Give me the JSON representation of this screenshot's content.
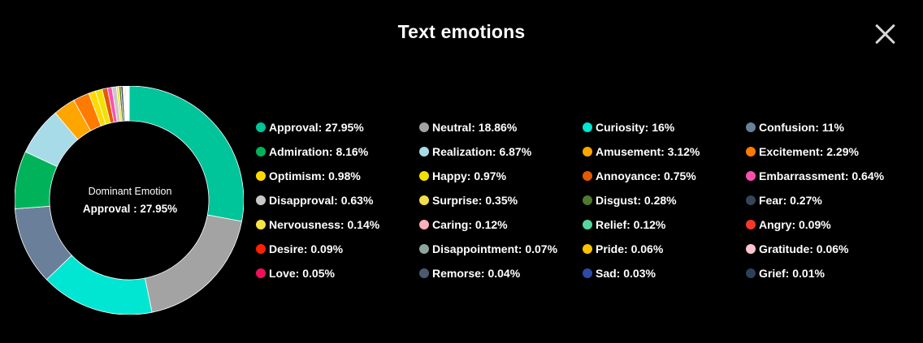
{
  "header": {
    "title": "Text emotions"
  },
  "center": {
    "label": "Dominant Emotion",
    "value": "Approval : 27.95%"
  },
  "chart_data": {
    "type": "pie",
    "series": [
      {
        "name": "Approval",
        "label": "Approval: 27.95%",
        "value": 27.95,
        "color": "#00c49a"
      },
      {
        "name": "Neutral",
        "label": "Neutral: 18.86%",
        "value": 18.86,
        "color": "#a3a3a3"
      },
      {
        "name": "Curiosity",
        "label": "Curiosity: 16%",
        "value": 16,
        "color": "#00e6d2"
      },
      {
        "name": "Confusion",
        "label": "Confusion: 11%",
        "value": 11,
        "color": "#6a7f99"
      },
      {
        "name": "Admiration",
        "label": "Admiration: 8.16%",
        "value": 8.16,
        "color": "#00b35a"
      },
      {
        "name": "Realization",
        "label": "Realization: 6.87%",
        "value": 6.87,
        "color": "#a8dbe8"
      },
      {
        "name": "Amusement",
        "label": "Amusement: 3.12%",
        "value": 3.12,
        "color": "#ffa500"
      },
      {
        "name": "Excitement",
        "label": "Excitement: 2.29%",
        "value": 2.29,
        "color": "#ff7a00"
      },
      {
        "name": "Optimism",
        "label": "Optimism: 0.98%",
        "value": 0.98,
        "color": "#ffd900"
      },
      {
        "name": "Happy",
        "label": "Happy: 0.97%",
        "value": 0.97,
        "color": "#f2e200"
      },
      {
        "name": "Annoyance",
        "label": "Annoyance: 0.75%",
        "value": 0.75,
        "color": "#e55a00"
      },
      {
        "name": "Embarrassment",
        "label": "Embarrassment: 0.64%",
        "value": 0.64,
        "color": "#ff4fb0"
      },
      {
        "name": "Disapproval",
        "label": "Disapproval: 0.63%",
        "value": 0.63,
        "color": "#c8c8c8"
      },
      {
        "name": "Surprise",
        "label": "Surprise: 0.35%",
        "value": 0.35,
        "color": "#f4dd4c"
      },
      {
        "name": "Disgust",
        "label": "Disgust: 0.28%",
        "value": 0.28,
        "color": "#4e7a2e"
      },
      {
        "name": "Fear",
        "label": "Fear: 0.27%",
        "value": 0.27,
        "color": "#33455a"
      },
      {
        "name": "Nervousness",
        "label": "Nervousness: 0.14%",
        "value": 0.14,
        "color": "#f6e445"
      },
      {
        "name": "Caring",
        "label": "Caring: 0.12%",
        "value": 0.12,
        "color": "#ffb0b8"
      },
      {
        "name": "Relief",
        "label": "Relief: 0.12%",
        "value": 0.12,
        "color": "#55d69e"
      },
      {
        "name": "Angry",
        "label": "Angry: 0.09%",
        "value": 0.09,
        "color": "#f23a2a"
      },
      {
        "name": "Desire",
        "label": "Desire: 0.09%",
        "value": 0.09,
        "color": "#ff2000"
      },
      {
        "name": "Disappointment",
        "label": "Disappointment: 0.07%",
        "value": 0.07,
        "color": "#8fa49c"
      },
      {
        "name": "Pride",
        "label": "Pride: 0.06%",
        "value": 0.06,
        "color": "#ffc200"
      },
      {
        "name": "Gratitude",
        "label": "Gratitude: 0.06%",
        "value": 0.06,
        "color": "#ffc4d0"
      },
      {
        "name": "Love",
        "label": "Love: 0.05%",
        "value": 0.05,
        "color": "#f0105a"
      },
      {
        "name": "Remorse",
        "label": "Remorse: 0.04%",
        "value": 0.04,
        "color": "#4a5a72"
      },
      {
        "name": "Sad",
        "label": "Sad: 0.03%",
        "value": 0.03,
        "color": "#2c4aa6"
      },
      {
        "name": "Grief",
        "label": "Grief: 0.01%",
        "value": 0.01,
        "color": "#2d3f57"
      }
    ]
  }
}
